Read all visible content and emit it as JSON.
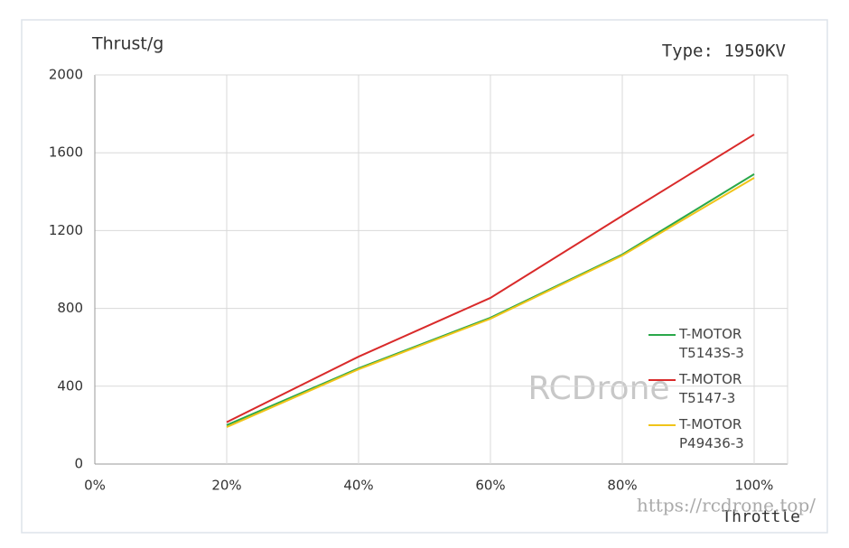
{
  "chart_data": {
    "type": "line",
    "y_label": "Thrust/g",
    "x_label": "Throttle",
    "annotation": "Type: 1950KV",
    "watermark": "RCDrone",
    "url": "https://rcdrone.top/",
    "x": [
      20,
      40,
      60,
      80,
      100
    ],
    "series": [
      {
        "name": "T-MOTOR\nT5143S-3",
        "color": "#2aa84a",
        "values": [
          200,
          492,
          752,
          1077,
          1490
        ]
      },
      {
        "name": "T-MOTOR\nT5147-3",
        "color": "#d92a2a",
        "values": [
          215,
          552,
          854,
          1276,
          1694
        ]
      },
      {
        "name": "T-MOTOR\nP49436-3",
        "color": "#f0c419",
        "values": [
          190,
          487,
          747,
          1072,
          1471
        ]
      }
    ],
    "xlim": [
      0,
      100
    ],
    "xticks": [
      {
        "value": 0,
        "label": "0%"
      },
      {
        "value": 20,
        "label": "20%"
      },
      {
        "value": 40,
        "label": "40%"
      },
      {
        "value": 60,
        "label": "60%"
      },
      {
        "value": 80,
        "label": "80%"
      },
      {
        "value": 100,
        "label": "100%"
      }
    ],
    "ylim": [
      0,
      2000
    ],
    "yticks": [
      0,
      400,
      800,
      1200,
      1600,
      2000
    ],
    "grid": true
  }
}
